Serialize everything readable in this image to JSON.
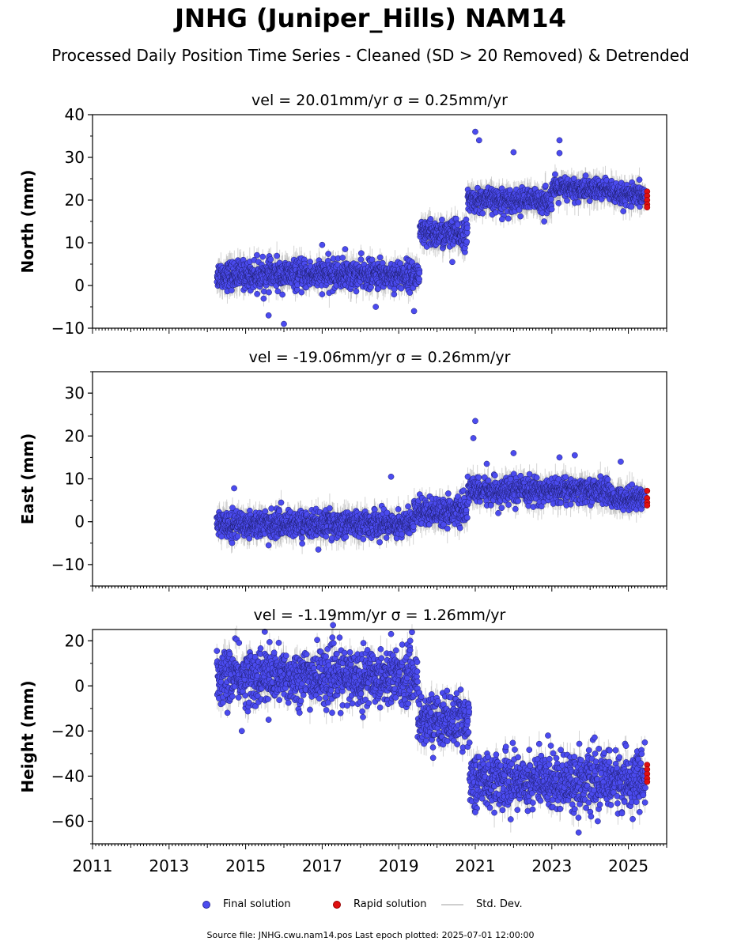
{
  "title": "JNHG (Juniper_Hills) NAM14",
  "subtitle": "Processed Daily Position Time Series - Cleaned (SD > 20 Removed) & Detrended",
  "footer": "Source file: JNHG.cwu.nam14.pos  Last epoch plotted: 2025-07-01 12:00:00",
  "legend": {
    "final": "Final solution",
    "rapid": "Rapid solution",
    "sd": "Std. Dev."
  },
  "colors": {
    "final": "#4b4bef",
    "rapid": "#e01010",
    "sd": "#b0b0b0"
  },
  "chart_data": [
    {
      "type": "scatter",
      "title": "vel = 20.01mm/yr   σ = 0.25mm/yr",
      "ylabel": "North (mm)",
      "xlim": [
        2011,
        2026
      ],
      "ylim": [
        -10,
        40
      ],
      "yticks": [
        -10,
        0,
        10,
        20,
        30,
        40
      ],
      "segments": [
        {
          "x": [
            2014.25,
            2019.55
          ],
          "mean": 2.5,
          "spread": 1.6
        },
        {
          "x": [
            2019.55,
            2020.8
          ],
          "mean": 12.0,
          "spread": 1.6
        },
        {
          "x": [
            2020.8,
            2023.0
          ],
          "mean": 20.0,
          "spread": 1.3
        },
        {
          "x": [
            2023.0,
            2024.6
          ],
          "mean": 22.5,
          "spread": 1.3
        },
        {
          "x": [
            2024.6,
            2025.45
          ],
          "mean": 21.0,
          "spread": 1.2
        }
      ],
      "outliers": [
        [
          2021.0,
          36.0
        ],
        [
          2021.1,
          34.0
        ],
        [
          2022.0,
          31.2
        ],
        [
          2023.2,
          31.0
        ],
        [
          2023.2,
          34.0
        ],
        [
          2016.0,
          -9.0
        ],
        [
          2015.6,
          -7.0
        ],
        [
          2018.4,
          -5.0
        ],
        [
          2017.0,
          9.5
        ],
        [
          2019.4,
          -6.0
        ],
        [
          2020.4,
          5.5
        ],
        [
          2017.6,
          8.5
        ],
        [
          2022.8,
          15.0
        ],
        [
          2021.7,
          15.5
        ],
        [
          2015.3,
          -2.0
        ]
      ],
      "rapid": [
        [
          2025.49,
          22.0
        ],
        [
          2025.49,
          21.0
        ],
        [
          2025.49,
          20.0
        ],
        [
          2025.49,
          19.0
        ],
        [
          2025.49,
          18.3
        ]
      ]
    },
    {
      "type": "scatter",
      "title": "vel = -19.06mm/yr   σ = 0.26mm/yr",
      "ylabel": "East (mm)",
      "xlim": [
        2011,
        2026
      ],
      "ylim": [
        -15,
        35
      ],
      "yticks": [
        -10,
        0,
        10,
        20,
        30
      ],
      "segments": [
        {
          "x": [
            2014.25,
            2019.4
          ],
          "mean": -0.5,
          "spread": 1.5
        },
        {
          "x": [
            2019.4,
            2020.8
          ],
          "mean": 2.5,
          "spread": 1.5
        },
        {
          "x": [
            2020.8,
            2024.5
          ],
          "mean": 7.2,
          "spread": 1.4
        },
        {
          "x": [
            2024.5,
            2025.45
          ],
          "mean": 5.5,
          "spread": 1.2
        }
      ],
      "outliers": [
        [
          2021.0,
          23.5
        ],
        [
          2020.95,
          19.5
        ],
        [
          2018.8,
          10.5
        ],
        [
          2022.0,
          16.0
        ],
        [
          2023.2,
          15.0
        ],
        [
          2023.6,
          15.5
        ],
        [
          2014.7,
          7.8
        ],
        [
          2016.9,
          -6.5
        ],
        [
          2024.8,
          14.0
        ],
        [
          2021.3,
          13.5
        ],
        [
          2015.6,
          -5.5
        ],
        [
          2021.6,
          2.0
        ]
      ],
      "rapid": [
        [
          2025.49,
          7.2
        ],
        [
          2025.49,
          5.5
        ],
        [
          2025.49,
          4.5
        ],
        [
          2025.49,
          3.8
        ]
      ]
    },
    {
      "type": "scatter",
      "title": "vel = -1.19mm/yr   σ = 1.26mm/yr",
      "ylabel": "Height (mm)",
      "xlabel": "",
      "xlim": [
        2011,
        2026
      ],
      "ylim": [
        -70,
        25
      ],
      "yticks": [
        -60,
        -40,
        -20,
        0,
        20
      ],
      "xticks": [
        2011,
        2013,
        2015,
        2017,
        2019,
        2021,
        2023,
        2025
      ],
      "segments": [
        {
          "x": [
            2014.25,
            2019.5
          ],
          "mean": 4.0,
          "spread": 6.0
        },
        {
          "x": [
            2019.5,
            2020.85
          ],
          "mean": -15.0,
          "spread": 5.5
        },
        {
          "x": [
            2020.85,
            2025.45
          ],
          "mean": -42.0,
          "spread": 6.0
        }
      ],
      "outliers": [
        [
          2015.5,
          24.0
        ],
        [
          2018.8,
          23.0
        ],
        [
          2014.9,
          -20.0
        ],
        [
          2015.6,
          -15.0
        ],
        [
          2023.7,
          -65.0
        ],
        [
          2021.0,
          -56.0
        ],
        [
          2024.2,
          -60.0
        ],
        [
          2022.9,
          -22.0
        ],
        [
          2021.8,
          -27.0
        ],
        [
          2019.3,
          20.0
        ]
      ],
      "rapid": [
        [
          2025.49,
          -35.0
        ],
        [
          2025.49,
          -37.0
        ],
        [
          2025.49,
          -39.0
        ],
        [
          2025.49,
          -41.0
        ],
        [
          2025.49,
          -42.5
        ]
      ]
    }
  ]
}
